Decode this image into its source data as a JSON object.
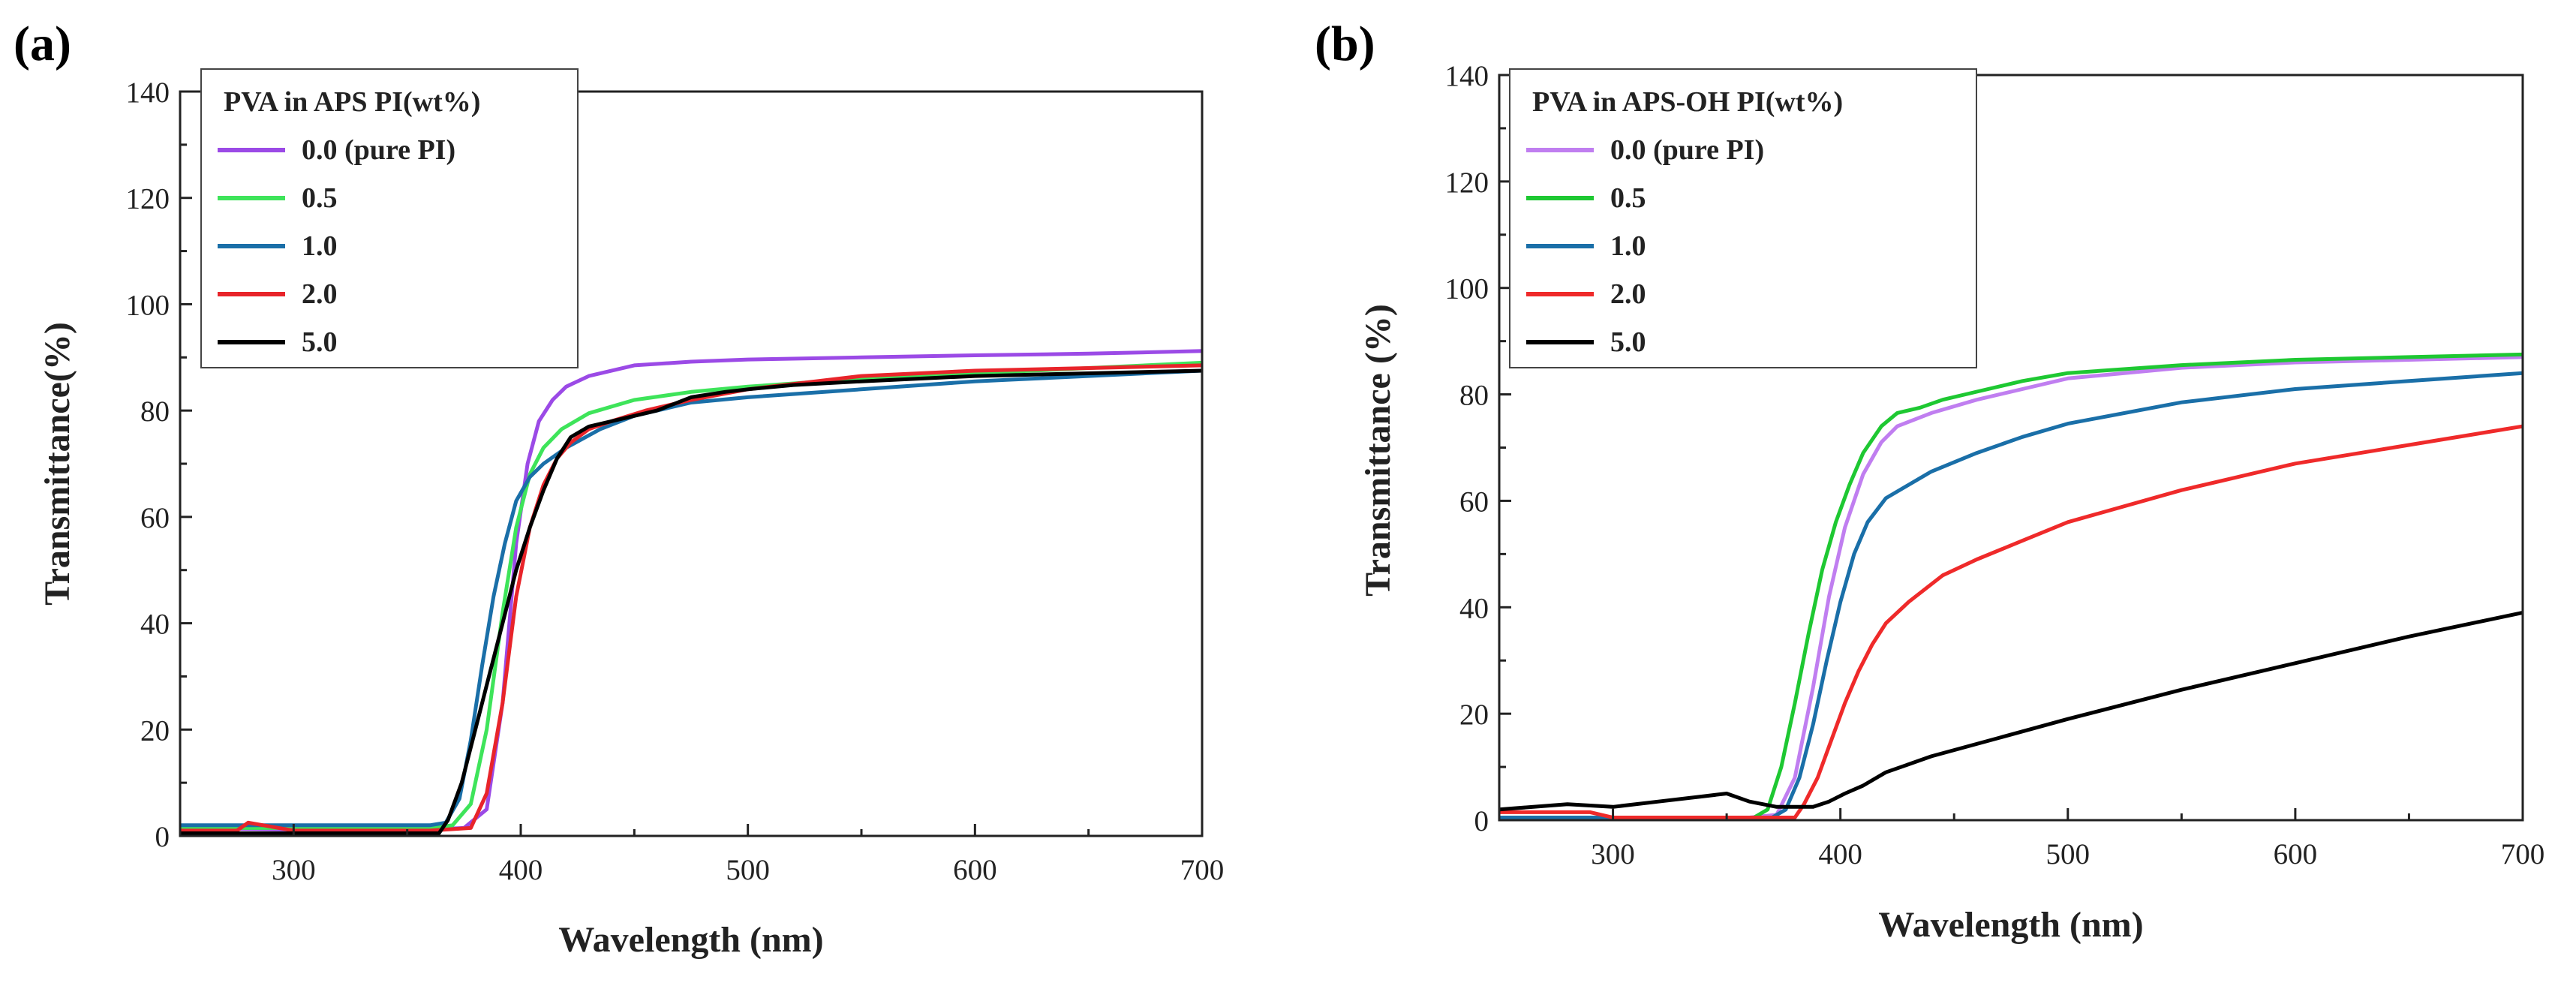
{
  "chart_data": [
    {
      "type": "line",
      "panel_label": "(a)",
      "xlabel": "Wavelength (nm)",
      "ylabel": "Transmittance(%)",
      "xlim": [
        250,
        700
      ],
      "ylim": [
        0,
        140
      ],
      "xticks": [
        300,
        400,
        500,
        600,
        700
      ],
      "xtick_labels": [
        "300",
        "400",
        "500",
        "600",
        "700"
      ],
      "yticks": [
        0,
        20,
        40,
        60,
        80,
        100,
        120,
        140
      ],
      "ytick_labels": [
        "0",
        "20",
        "40",
        "60",
        "80",
        "100",
        "120",
        "140"
      ],
      "legend_title": "PVA in APS PI(wt%)",
      "legend_position": "top-left",
      "series": [
        {
          "name": "0.0 (pure PI)",
          "color": "#9b4ae6",
          "x": [
            250,
            300,
            360,
            375,
            385,
            392,
            398,
            403,
            408,
            414,
            420,
            430,
            450,
            475,
            500,
            550,
            600,
            650,
            700
          ],
          "y": [
            1.5,
            1.2,
            1.2,
            1.5,
            5,
            25,
            55,
            70,
            78,
            82,
            84.5,
            86.5,
            88.5,
            89.2,
            89.6,
            90,
            90.4,
            90.7,
            91.2
          ]
        },
        {
          "name": "0.5",
          "color": "#3ee45a",
          "x": [
            250,
            300,
            360,
            370,
            378,
            385,
            392,
            398,
            404,
            410,
            418,
            430,
            450,
            475,
            500,
            550,
            600,
            650,
            700
          ],
          "y": [
            1.5,
            1.5,
            1.5,
            2,
            6,
            20,
            42,
            58,
            68,
            73,
            76.5,
            79.5,
            82,
            83.5,
            84.5,
            86,
            87,
            88,
            89
          ]
        },
        {
          "name": "1.0",
          "color": "#1a6fa8",
          "x": [
            250,
            300,
            360,
            367,
            373,
            378,
            383,
            388,
            393,
            398,
            404,
            410,
            420,
            435,
            450,
            475,
            500,
            550,
            600,
            650,
            700
          ],
          "y": [
            2,
            2,
            2,
            2.5,
            7,
            18,
            32,
            45,
            55,
            63,
            67.5,
            70,
            73,
            76.5,
            79,
            81.5,
            82.5,
            84,
            85.5,
            86.5,
            87.5
          ]
        },
        {
          "name": "2.0",
          "color": "#e8242a",
          "x": [
            250,
            275,
            280,
            300,
            360,
            378,
            385,
            392,
            398,
            404,
            410,
            416,
            422,
            430,
            440,
            455,
            475,
            500,
            550,
            600,
            650,
            700
          ],
          "y": [
            1,
            1,
            2.5,
            1,
            1,
            1.5,
            8,
            25,
            45,
            58,
            66,
            71,
            74,
            76.5,
            78,
            80,
            82,
            84,
            86.5,
            87.5,
            88,
            88.5
          ]
        },
        {
          "name": "5.0",
          "color": "#000000",
          "x": [
            250,
            300,
            350,
            364,
            368,
            374,
            380,
            386,
            392,
            398,
            404,
            410,
            416,
            422,
            430,
            445,
            460,
            475,
            490,
            500,
            520,
            550,
            600,
            650,
            700
          ],
          "y": [
            0.5,
            0.5,
            0.5,
            0.5,
            3,
            10,
            20,
            30,
            40,
            50,
            58,
            65,
            71,
            75,
            77,
            78.5,
            80,
            82.5,
            83.5,
            84,
            84.8,
            85.5,
            86.5,
            87,
            87.5
          ]
        }
      ]
    },
    {
      "type": "line",
      "panel_label": "(b)",
      "xlabel": "Wavelength (nm)",
      "ylabel": "Transmittance (%)",
      "xlim": [
        250,
        700
      ],
      "ylim": [
        0,
        140
      ],
      "xticks": [
        300,
        400,
        500,
        600,
        700
      ],
      "xtick_labels": [
        "300",
        "400",
        "500",
        "600",
        "700"
      ],
      "yticks": [
        0,
        20,
        40,
        60,
        80,
        100,
        120,
        140
      ],
      "ytick_labels": [
        "0",
        "20",
        "40",
        "60",
        "80",
        "100",
        "120",
        "140"
      ],
      "legend_title": "PVA in APS-OH PI(wt%)",
      "legend_position": "top-left",
      "series": [
        {
          "name": "0.0 (pure PI)",
          "color": "#c07ef0",
          "x": [
            250,
            300,
            360,
            372,
            380,
            388,
            395,
            402,
            410,
            418,
            425,
            440,
            460,
            480,
            500,
            550,
            600,
            650,
            700
          ],
          "y": [
            0.5,
            0.5,
            0.5,
            1,
            8,
            25,
            42,
            55,
            65,
            71,
            74,
            76.5,
            79,
            81,
            83,
            85,
            86,
            86.5,
            87
          ]
        },
        {
          "name": "0.5",
          "color": "#1ec832",
          "x": [
            250,
            300,
            362,
            368,
            374,
            380,
            386,
            392,
            398,
            404,
            410,
            418,
            425,
            435,
            445,
            460,
            480,
            500,
            550,
            600,
            650,
            700
          ],
          "y": [
            0.5,
            0.5,
            0.5,
            2,
            10,
            22,
            35,
            47,
            56,
            63,
            69,
            74,
            76.5,
            77.5,
            79,
            80.5,
            82.5,
            84,
            85.5,
            86.5,
            87,
            87.5
          ]
        },
        {
          "name": "1.0",
          "color": "#1a6fa8",
          "x": [
            250,
            300,
            370,
            376,
            382,
            388,
            394,
            400,
            406,
            412,
            420,
            430,
            440,
            460,
            480,
            500,
            550,
            600,
            650,
            700
          ],
          "y": [
            0.5,
            0.5,
            0.5,
            2,
            8,
            18,
            30,
            41,
            50,
            56,
            60.5,
            63,
            65.5,
            69,
            72,
            74.5,
            78.5,
            81,
            82.5,
            84
          ]
        },
        {
          "name": "2.0",
          "color": "#ef2a2a",
          "x": [
            250,
            290,
            300,
            380,
            384,
            390,
            396,
            402,
            408,
            414,
            420,
            430,
            445,
            460,
            480,
            500,
            550,
            600,
            650,
            700
          ],
          "y": [
            1.5,
            1.5,
            0.5,
            0.5,
            3,
            8,
            15,
            22,
            28,
            33,
            37,
            41,
            46,
            49,
            52.5,
            56,
            62,
            67,
            70.5,
            74
          ]
        },
        {
          "name": "5.0",
          "color": "#000000",
          "x": [
            250,
            280,
            300,
            320,
            340,
            350,
            360,
            372,
            380,
            388,
            395,
            402,
            410,
            420,
            440,
            470,
            500,
            550,
            600,
            650,
            700
          ],
          "y": [
            2,
            3,
            2.5,
            3.5,
            4.5,
            5,
            3.5,
            2.5,
            2.5,
            2.5,
            3.5,
            5,
            6.5,
            9,
            12,
            15.5,
            19,
            24.5,
            29.5,
            34.5,
            39
          ]
        }
      ]
    }
  ]
}
